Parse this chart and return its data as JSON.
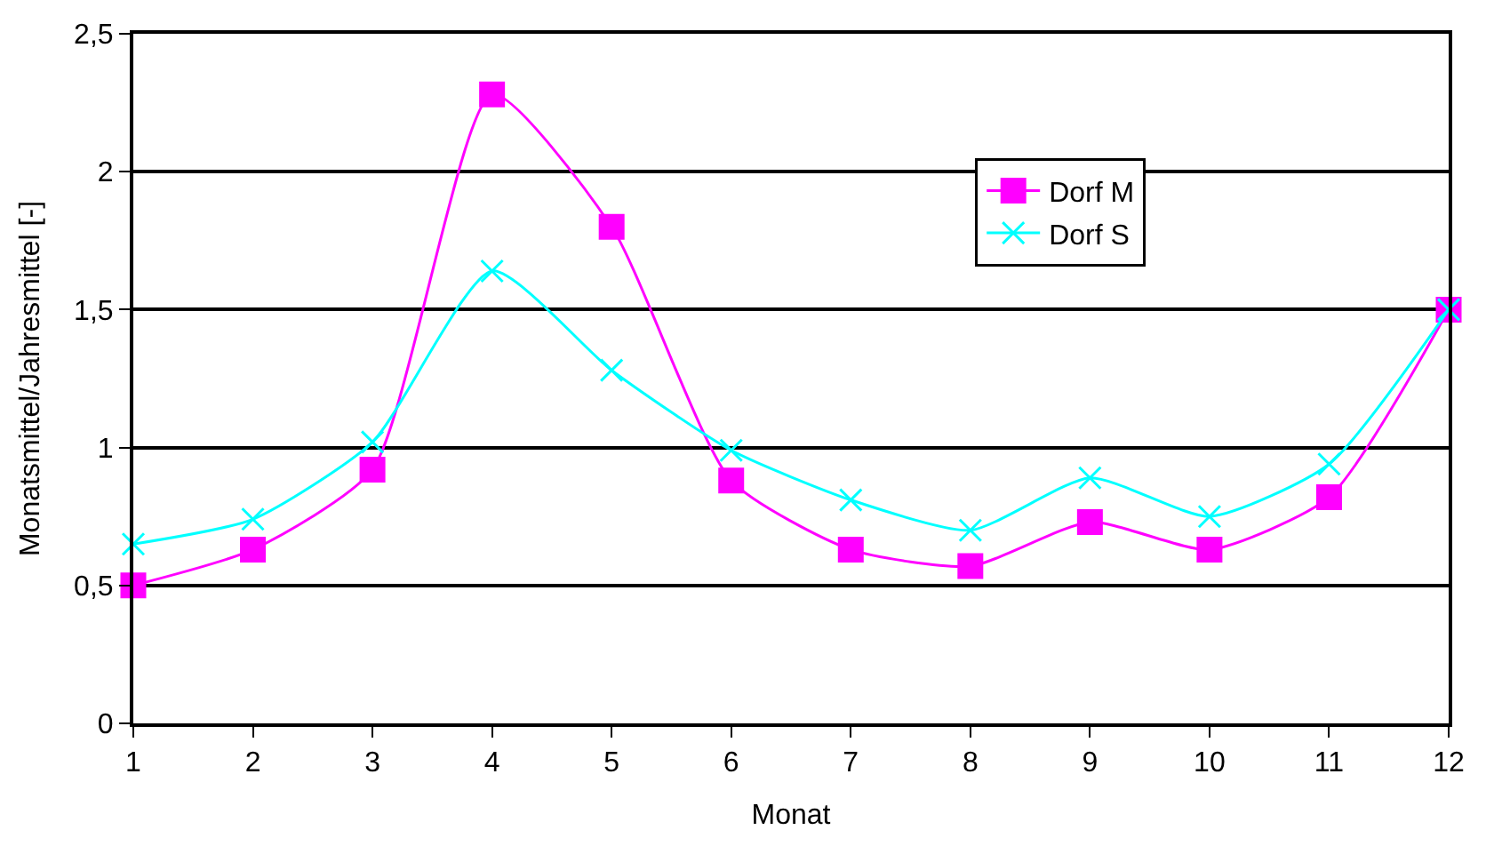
{
  "chart_data": {
    "type": "line",
    "xlabel": "Monat",
    "ylabel": "Monatsmittel/Jahresmittel [-]",
    "x": [
      1,
      2,
      3,
      4,
      5,
      6,
      7,
      8,
      9,
      10,
      11,
      12
    ],
    "series": [
      {
        "name": "Dorf M",
        "color": "#ff00ff",
        "marker": "square",
        "values": [
          0.5,
          0.63,
          0.92,
          2.28,
          1.8,
          0.88,
          0.63,
          0.57,
          0.73,
          0.63,
          0.82,
          1.5
        ]
      },
      {
        "name": "Dorf S",
        "color": "#00ffff",
        "marker": "cross",
        "values": [
          0.65,
          0.74,
          1.02,
          1.64,
          1.28,
          0.99,
          0.81,
          0.7,
          0.89,
          0.75,
          0.94,
          1.5
        ]
      }
    ],
    "xlim": [
      1,
      12
    ],
    "xticks": [
      1,
      2,
      3,
      4,
      5,
      6,
      7,
      8,
      9,
      10,
      11,
      12
    ],
    "ylim": [
      0,
      2.5
    ],
    "yticks": [
      0,
      {
        "value": 0.5,
        "label": "0,5"
      },
      1,
      {
        "value": 1.5,
        "label": "1,5"
      },
      2,
      {
        "value": 2.5,
        "label": "2,5"
      }
    ],
    "grid": "y",
    "legend": "top right",
    "line_style": "solid"
  }
}
